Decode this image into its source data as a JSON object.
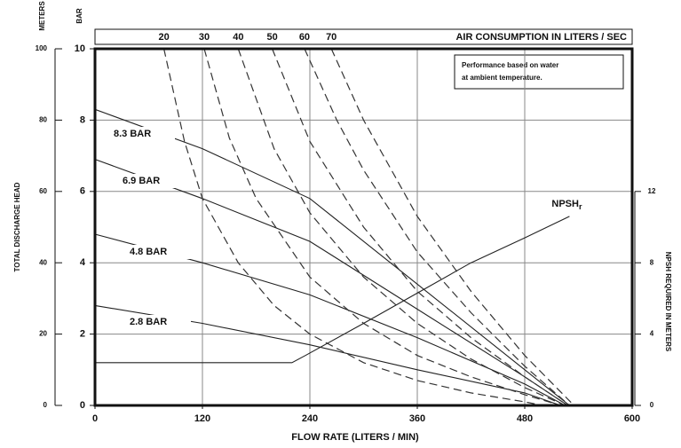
{
  "chart_data": {
    "type": "line",
    "x_label": "FLOW RATE (LITERS / MIN)",
    "y_label": "TOTAL DISCHARGE HEAD",
    "y_unit_label": "BAR",
    "meters_label": "METERS",
    "y2_label": "NPSH REQUIRED IN METERS",
    "top_label": "AIR CONSUMPTION IN LITERS / SEC",
    "note": [
      "Performance based on water",
      "at ambient temperature."
    ],
    "xlim": [
      0,
      600
    ],
    "xticks": [
      0,
      120,
      240,
      360,
      480,
      600
    ],
    "ylim": [
      0,
      10
    ],
    "yticks": [
      0,
      2,
      4,
      6,
      8,
      10
    ],
    "meters_lim": [
      0,
      100
    ],
    "meters_ticks": [
      0,
      20,
      40,
      60,
      80,
      100
    ],
    "y2lim": [
      0,
      20
    ],
    "y2ticks": [
      0,
      4,
      8,
      12
    ],
    "grid": true,
    "series": [
      {
        "name": "8.3 BAR",
        "group": "pressure",
        "color": "#222",
        "x": [
          0,
          120,
          240,
          360,
          480,
          530
        ],
        "values": [
          8.3,
          7.2,
          5.8,
          3.4,
          1.0,
          0
        ]
      },
      {
        "name": "6.9 BAR",
        "group": "pressure",
        "color": "#222",
        "x": [
          0,
          120,
          240,
          360,
          480,
          528
        ],
        "values": [
          6.9,
          5.8,
          4.6,
          2.7,
          0.8,
          0
        ]
      },
      {
        "name": "4.8 BAR",
        "group": "pressure",
        "color": "#222",
        "x": [
          0,
          120,
          240,
          360,
          480,
          525
        ],
        "values": [
          4.8,
          4.0,
          3.1,
          1.9,
          0.6,
          0
        ]
      },
      {
        "name": "2.8 BAR",
        "group": "pressure",
        "color": "#222",
        "x": [
          0,
          120,
          240,
          360,
          480,
          520
        ],
        "values": [
          2.8,
          2.3,
          1.7,
          1.0,
          0.35,
          0
        ]
      },
      {
        "name": "20",
        "group": "air",
        "color": "#333",
        "dash": true,
        "x": [
          77,
          100,
          120,
          160,
          200,
          240,
          300,
          360,
          420,
          480,
          500
        ],
        "values": [
          10,
          7.4,
          5.8,
          4.0,
          2.8,
          2.0,
          1.2,
          0.7,
          0.35,
          0.1,
          0
        ]
      },
      {
        "name": "30",
        "group": "air",
        "color": "#333",
        "dash": true,
        "x": [
          122,
          150,
          180,
          240,
          300,
          360,
          420,
          480,
          520
        ],
        "values": [
          10,
          7.5,
          5.8,
          3.6,
          2.3,
          1.4,
          0.8,
          0.3,
          0
        ]
      },
      {
        "name": "40",
        "group": "air",
        "color": "#333",
        "dash": true,
        "x": [
          160,
          200,
          240,
          300,
          360,
          420,
          480,
          525
        ],
        "values": [
          10,
          7.2,
          5.4,
          3.6,
          2.3,
          1.3,
          0.5,
          0
        ]
      },
      {
        "name": "50",
        "group": "air",
        "color": "#333",
        "dash": true,
        "x": [
          198,
          240,
          300,
          360,
          420,
          480,
          528
        ],
        "values": [
          10,
          7.4,
          5.0,
          3.2,
          1.9,
          0.8,
          0
        ]
      },
      {
        "name": "60",
        "group": "air",
        "color": "#333",
        "dash": true,
        "x": [
          234,
          270,
          300,
          360,
          420,
          480,
          530
        ],
        "values": [
          10,
          8.0,
          6.6,
          4.3,
          2.6,
          1.1,
          0
        ]
      },
      {
        "name": "70",
        "group": "air",
        "color": "#333",
        "dash": true,
        "x": [
          264,
          300,
          360,
          420,
          480,
          535
        ],
        "values": [
          10,
          8.0,
          5.3,
          3.2,
          1.4,
          0
        ]
      },
      {
        "name": "NPSH",
        "subscript": "r",
        "group": "npsh",
        "axis": "y2",
        "color": "#222",
        "x": [
          0,
          220,
          235,
          300,
          360,
          420,
          480,
          530
        ],
        "values": [
          2.4,
          2.4,
          2.8,
          4.6,
          6.3,
          8.0,
          9.4,
          10.6
        ]
      }
    ]
  }
}
